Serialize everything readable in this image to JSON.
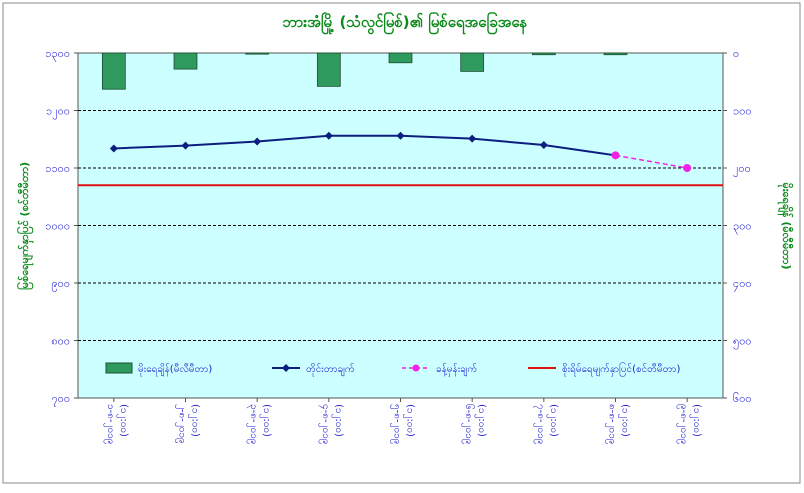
{
  "chart_data": {
    "type": "bar+line",
    "title": "ဘားအံမြို့ (သံလွင်မြစ်)၏ မြစ်ရေအခြေအနေ",
    "ylabel_left": "မြစ်ရေမျက်နှာပြင် (စင်တီမီတာ)",
    "ylabel_right": "မိုးရေချိန် (မီလီမီတာ)",
    "left_axis": {
      "min": 700,
      "max": 1300,
      "step": 100,
      "tick_labels": [
        "၁၃၀၀",
        "၁၂၀၀",
        "၁၁၀၀",
        "၁၀၀၀",
        "၉၀၀",
        "၈၀၀",
        "၇၀၀"
      ]
    },
    "right_axis": {
      "min": 0,
      "max": 600,
      "step": 100,
      "reversed": true,
      "tick_labels": [
        "၀",
        "၁၀၀",
        "၂၀၀",
        "၃၀၀",
        "၄၀၀",
        "၅၀၀",
        "၆၀၀"
      ]
    },
    "categories": [
      [
        "၁-၈-၂၀၁၉",
        "(၁၂:၀၀)"
      ],
      [
        "၂-၈-၂၀၁၉",
        "(၁၂:၀၀)"
      ],
      [
        "၃-၈-၂၀၁၉",
        "(၁၂:၀၀)"
      ],
      [
        "၄-၈-၂၀၁၉",
        "(၁၂:၀၀)"
      ],
      [
        "၅-၈-၂၀၁၉",
        "(၁၂:၀၀)"
      ],
      [
        "၆-၈-၂၀၁၉",
        "(၁၂:၀၀)"
      ],
      [
        "၇-၈-၂၀၁၉",
        "(၁၂:၀၀)"
      ],
      [
        "၈-၈-၂၀၁၉",
        "(၁၂:၀၀)"
      ],
      [
        "၉-၈-၂၀၁၉",
        "(၁၂:၀၀)"
      ]
    ],
    "series": [
      {
        "name": "မိုးရေချိန်(မီလီမီတာ)",
        "kind": "bar",
        "axis": "right",
        "color": "#2e9a5e",
        "values": [
          63,
          28,
          2,
          58,
          17,
          32,
          3,
          3,
          null
        ]
      },
      {
        "name": "တိုင်းတာချက်",
        "kind": "line",
        "axis": "left",
        "color": "#0d1e80",
        "values": [
          1134,
          1139,
          1146,
          1156,
          1156,
          1151,
          1140,
          1122,
          null
        ]
      },
      {
        "name": "ခန့်မှန်းချက်",
        "kind": "line-dashed",
        "axis": "left",
        "color": "#f022e8",
        "values": [
          null,
          null,
          null,
          null,
          null,
          null,
          null,
          1122,
          1100
        ]
      },
      {
        "name": "စိုးရိမ်ရေမျက်နှာပြင်(စင်တီမီတာ)",
        "kind": "hline",
        "axis": "left",
        "color": "#e01010",
        "value": 1070
      }
    ],
    "grid": true,
    "plot_background": "#ccffff",
    "legend_position": "bottom-inside"
  }
}
